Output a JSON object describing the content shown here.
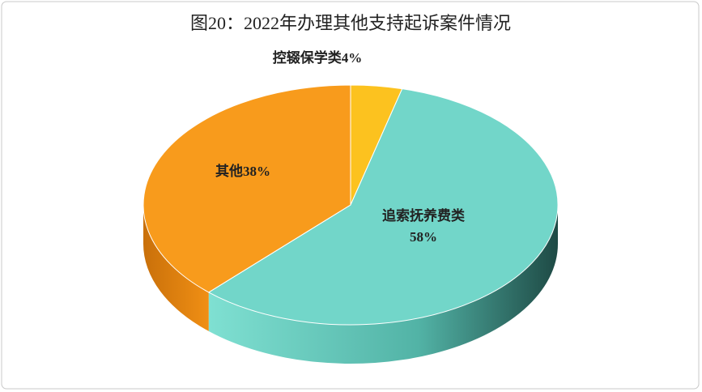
{
  "chart_data": {
    "type": "pie",
    "title": "图20：2022年办理其他支持起诉案件情况",
    "categories": [
      "控辍保学类",
      "追索抚养费类",
      "其他"
    ],
    "values": [
      4,
      58,
      38
    ],
    "value_labels": [
      "4%",
      "58%",
      "38%"
    ],
    "colors": [
      "#fcc21f",
      "#72d6c9",
      "#f89b1c"
    ]
  }
}
